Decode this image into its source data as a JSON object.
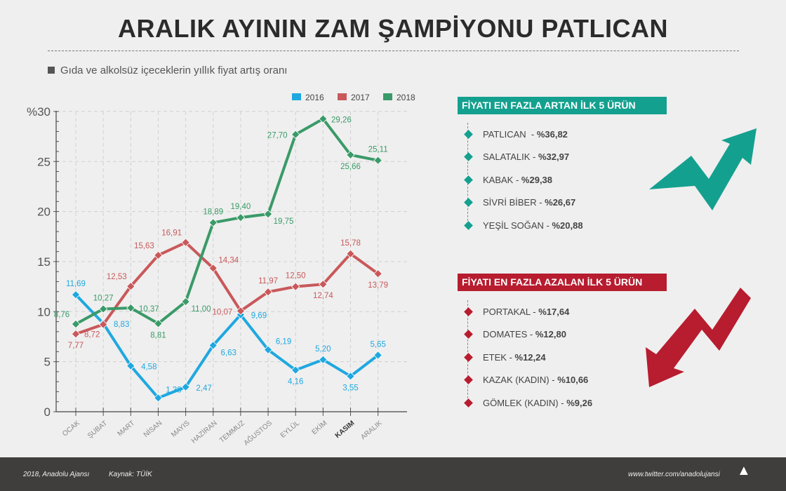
{
  "title": "ARALIK AYININ ZAM ŞAMPİYONU PATLICAN",
  "subtitle": "Gıda ve alkolsüz içeceklerin yıllık fiyat artış oranı",
  "chart_data": {
    "type": "line",
    "title": "Gıda ve alkolsüz içeceklerin yıllık fiyat artış oranı",
    "categories": [
      "OCAK",
      "ŞUBAT",
      "MART",
      "NİSAN",
      "MAYIS",
      "HAZİRAN",
      "TEMMUZ",
      "AĞUSTOS",
      "EYLÜL",
      "EKİM",
      "KASIM",
      "ARALIK"
    ],
    "series": [
      {
        "name": "2016",
        "color": "#1fa8e0",
        "values": [
          11.69,
          8.83,
          4.58,
          1.38,
          2.47,
          6.63,
          9.69,
          6.19,
          4.16,
          5.2,
          3.55,
          5.65
        ],
        "labels": [
          "11,69",
          "8,83",
          "4,58",
          "1,38",
          "2,47",
          "6,63",
          "9,69",
          "6,19",
          "4,16",
          "5,20",
          "3,55",
          "5,65"
        ]
      },
      {
        "name": "2017",
        "color": "#c9585a",
        "values": [
          7.77,
          8.72,
          12.53,
          15.63,
          16.91,
          14.34,
          10.07,
          11.97,
          12.5,
          12.74,
          15.78,
          13.79
        ],
        "labels": [
          "7,77",
          "8,72",
          "12,53",
          "15,63",
          "16,91",
          "14,34",
          "10,07",
          "11,97",
          "12,50",
          "12,74",
          "15,78",
          "13,79"
        ]
      },
      {
        "name": "2018",
        "color": "#3a9a68",
        "values": [
          8.76,
          10.27,
          10.37,
          8.81,
          11.0,
          18.89,
          19.4,
          19.75,
          27.7,
          29.26,
          25.66,
          25.11
        ],
        "labels": [
          "8,76",
          "10,27",
          "10,37",
          "8,81",
          "11,00",
          "18,89",
          "19,40",
          "19,75",
          "27,70",
          "29,26",
          "25,66",
          "25,11"
        ]
      }
    ],
    "yticks": [
      "0",
      "5",
      "10",
      "15",
      "20",
      "25",
      "%30"
    ],
    "ylim": [
      0,
      30
    ],
    "highlight_category": "KASIM",
    "grid": true,
    "legend": "top-right"
  },
  "increase": {
    "title": "FİYATI EN FAZLA ARTAN İLK 5 ÜRÜN",
    "color": "#14a08f",
    "items": [
      {
        "name": "PATLICAN  - ",
        "value": "%36,82"
      },
      {
        "name": "SALATALIK - ",
        "value": "%32,97"
      },
      {
        "name": "KABAK - ",
        "value": "%29,38"
      },
      {
        "name": "SİVRİ BİBER - ",
        "value": "%26,67"
      },
      {
        "name": "YEŞİL SOĞAN - ",
        "value": "%20,88"
      }
    ]
  },
  "decrease": {
    "title": "FİYATI EN FAZLA AZALAN İLK 5 ÜRÜN",
    "color": "#b71c2f",
    "items": [
      {
        "name": "PORTAKAL - ",
        "value": "%17,64"
      },
      {
        "name": "DOMATES - ",
        "value": "%12,80"
      },
      {
        "name": "ETEK - ",
        "value": "%12,24"
      },
      {
        "name": "KAZAK (KADIN) - ",
        "value": "%10,66"
      },
      {
        "name": "GÖMLEK (KADIN) - ",
        "value": "%9,26"
      }
    ]
  },
  "footer": {
    "copyright": "2018, Anadolu Ajansı",
    "source": "Kaynak: TÜİK",
    "twitter": "www.twitter.com/anadolujansi",
    "logo": "AA"
  }
}
